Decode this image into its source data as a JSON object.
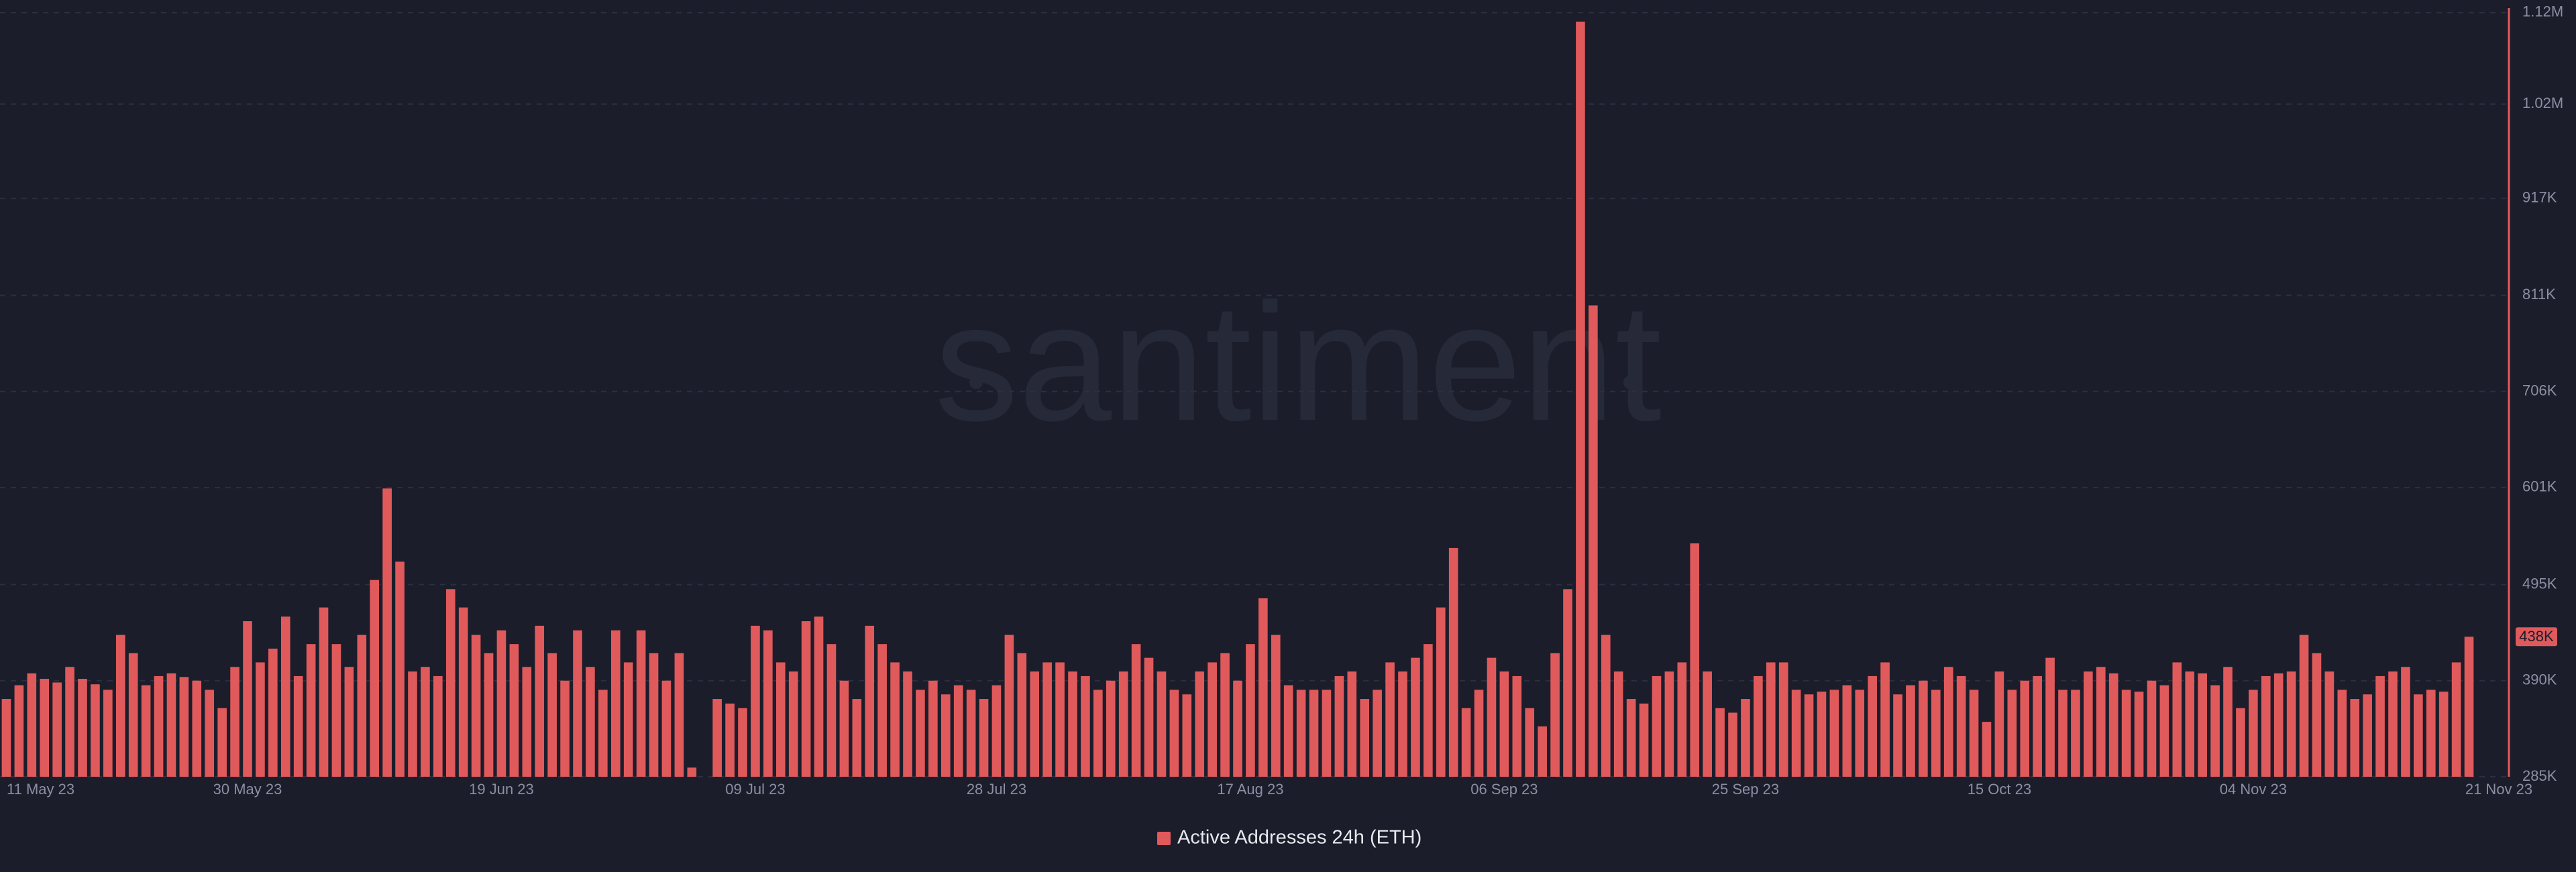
{
  "chart_data": {
    "type": "bar",
    "watermark": "santiment",
    "categories": [
      "11 May 23",
      null,
      null,
      null,
      null,
      null,
      null,
      null,
      null,
      null,
      null,
      null,
      null,
      null,
      null,
      null,
      null,
      null,
      null,
      "30 May 23",
      null,
      null,
      null,
      null,
      null,
      null,
      null,
      null,
      null,
      null,
      null,
      null,
      null,
      null,
      null,
      null,
      null,
      null,
      null,
      "19 Jun 23",
      null,
      null,
      null,
      null,
      null,
      null,
      null,
      null,
      null,
      null,
      null,
      null,
      null,
      null,
      null,
      null,
      null,
      null,
      null,
      "09 Jul 23",
      null,
      null,
      null,
      null,
      null,
      null,
      null,
      null,
      null,
      null,
      null,
      null,
      null,
      null,
      null,
      null,
      null,
      null,
      "28 Jul 23",
      null,
      null,
      null,
      null,
      null,
      null,
      null,
      null,
      null,
      null,
      null,
      null,
      null,
      null,
      null,
      null,
      null,
      null,
      null,
      "17 Aug 23",
      null,
      null,
      null,
      null,
      null,
      null,
      null,
      null,
      null,
      null,
      null,
      null,
      null,
      null,
      null,
      null,
      null,
      null,
      null,
      "06 Sep 23",
      null,
      null,
      null,
      null,
      null,
      null,
      null,
      null,
      null,
      null,
      null,
      null,
      null,
      null,
      null,
      null,
      null,
      null,
      "25 Sep 23",
      null,
      null,
      null,
      null,
      null,
      null,
      null,
      null,
      null,
      null,
      null,
      null,
      null,
      null,
      null,
      null,
      null,
      null,
      null,
      "15 Oct 23",
      null,
      null,
      null,
      null,
      null,
      null,
      null,
      null,
      null,
      null,
      null,
      null,
      null,
      null,
      null,
      null,
      null,
      null,
      null,
      "04 Nov 23",
      null,
      null,
      null,
      null,
      null,
      null,
      null,
      null,
      null,
      null,
      null,
      null,
      null,
      null,
      null,
      null,
      "21 Nov 23"
    ],
    "series": [
      {
        "name": "Active Addresses 24h (ETH)",
        "color": "#e05a5c",
        "values": [
          370000,
          385000,
          398000,
          392000,
          388000,
          405000,
          392000,
          386000,
          380000,
          440000,
          420000,
          385000,
          395000,
          398000,
          394000,
          390000,
          380000,
          360000,
          405000,
          455000,
          410000,
          425000,
          460000,
          395000,
          430000,
          470000,
          430000,
          405000,
          440000,
          500000,
          600000,
          520000,
          400000,
          405000,
          395000,
          490000,
          470000,
          440000,
          420000,
          445000,
          430000,
          405000,
          450000,
          420000,
          390000,
          445000,
          405000,
          380000,
          445000,
          410000,
          445000,
          420000,
          390000,
          420000,
          295000,
          285000,
          370000,
          365000,
          360000,
          450000,
          445000,
          410000,
          400000,
          455000,
          460000,
          430000,
          390000,
          370000,
          450000,
          430000,
          410000,
          400000,
          380000,
          390000,
          375000,
          385000,
          380000,
          370000,
          385000,
          440000,
          420000,
          400000,
          410000,
          410000,
          400000,
          395000,
          380000,
          390000,
          400000,
          430000,
          415000,
          400000,
          380000,
          375000,
          400000,
          410000,
          420000,
          390000,
          430000,
          480000,
          440000,
          385000,
          380000,
          380000,
          380000,
          395000,
          400000,
          370000,
          380000,
          410000,
          400000,
          415000,
          430000,
          470000,
          535000,
          360000,
          380000,
          415000,
          400000,
          395000,
          360000,
          340000,
          420000,
          490000,
          1110000,
          800000,
          440000,
          400000,
          370000,
          365000,
          395000,
          400000,
          410000,
          540000,
          400000,
          360000,
          355000,
          370000,
          395000,
          410000,
          410000,
          380000,
          375000,
          378000,
          380000,
          385000,
          380000,
          395000,
          410000,
          375000,
          385000,
          390000,
          380000,
          405000,
          395000,
          380000,
          345000,
          400000,
          380000,
          390000,
          395000,
          415000,
          380000,
          380000,
          400000,
          405000,
          398000,
          380000,
          378000,
          390000,
          385000,
          410000,
          400000,
          398000,
          385000,
          405000,
          360000,
          380000,
          395000,
          398000,
          400000,
          440000,
          420000,
          400000,
          380000,
          370000,
          375000,
          395000,
          400000,
          405000,
          375000,
          380000,
          378000,
          410000,
          438000
        ]
      }
    ],
    "last_value": {
      "value": 438000,
      "label": "438K"
    },
    "ylim": [
      285000,
      1125000
    ],
    "yticks": [
      {
        "value": 285000,
        "label": "285K"
      },
      {
        "value": 390000,
        "label": "390K"
      },
      {
        "value": 495000,
        "label": "495K"
      },
      {
        "value": 601000,
        "label": "601K"
      },
      {
        "value": 706000,
        "label": "706K"
      },
      {
        "value": 811000,
        "label": "811K"
      },
      {
        "value": 917000,
        "label": "917K"
      },
      {
        "value": 1020000,
        "label": "1.02M"
      },
      {
        "value": 1120000,
        "label": "1.12M"
      }
    ],
    "grid": true,
    "legend": "bottom"
  }
}
